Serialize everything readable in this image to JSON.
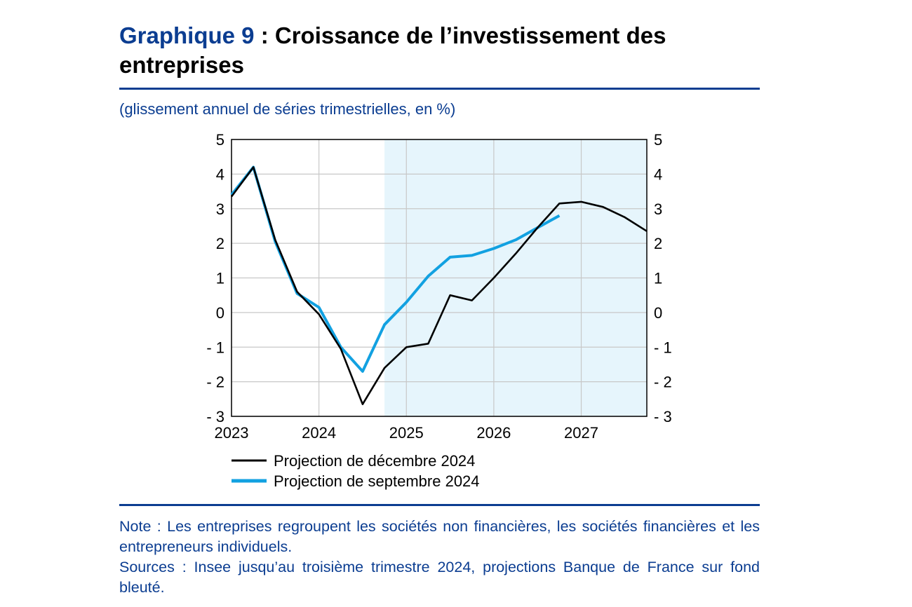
{
  "title_number": "Graphique 9",
  "title_text": " : Croissance de l’investissement des entreprises",
  "subtitle": "(glissement annuel de séries trimestrielles, en %)",
  "note": "Note : Les entreprises regroupent les sociétés non financières, les sociétés financières et les entrepreneurs individuels.",
  "sources": "Sources : Insee jusqu’au troisième trimestre 2024, projections Banque de France sur fond bleuté.",
  "colors": {
    "accent": "#0b3d91",
    "series_dec": "#000000",
    "series_sep": "#12a1e1",
    "projection_bg": "#e6f5fc"
  },
  "chart_data": {
    "type": "line",
    "x_tick_labels": [
      "2023",
      "2024",
      "2025",
      "2026",
      "2027"
    ],
    "y_tick_labels": [
      "5",
      "4",
      "3",
      "2",
      "1",
      "0",
      "- 1",
      "- 2",
      "- 3"
    ],
    "y_ticks": [
      5,
      4,
      3,
      2,
      1,
      0,
      -1,
      -2,
      -3
    ],
    "ylim": [
      -3,
      5
    ],
    "xlim": [
      2023.0,
      2027.75
    ],
    "x_grid": true,
    "y_grid": true,
    "y_axis_both_sides": true,
    "projection_shaded_from": 2024.75,
    "legend_placement": "bottom",
    "series": [
      {
        "name": "Projection de décembre 2024",
        "color": "#000000",
        "x": [
          2023.0,
          2023.25,
          2023.5,
          2023.75,
          2024.0,
          2024.25,
          2024.5,
          2024.75,
          2025.0,
          2025.25,
          2025.5,
          2025.75,
          2026.0,
          2026.25,
          2026.5,
          2026.75,
          2027.0,
          2027.25,
          2027.5,
          2027.75
        ],
        "values": [
          3.35,
          4.2,
          2.1,
          0.6,
          -0.05,
          -1.05,
          -2.65,
          -1.6,
          -1.0,
          -0.9,
          0.5,
          0.35,
          1.0,
          1.7,
          2.45,
          3.15,
          3.2,
          3.05,
          2.75,
          2.35
        ]
      },
      {
        "name": "Projection de septembre 2024",
        "color": "#12a1e1",
        "x": [
          2023.0,
          2023.25,
          2023.5,
          2023.75,
          2024.0,
          2024.25,
          2024.5,
          2024.75,
          2025.0,
          2025.25,
          2025.5,
          2025.75,
          2026.0,
          2026.25,
          2026.5,
          2026.75
        ],
        "values": [
          3.4,
          4.2,
          2.05,
          0.55,
          0.15,
          -1.0,
          -1.7,
          -0.35,
          0.3,
          1.05,
          1.6,
          1.65,
          1.85,
          2.1,
          2.45,
          2.8
        ]
      }
    ]
  }
}
